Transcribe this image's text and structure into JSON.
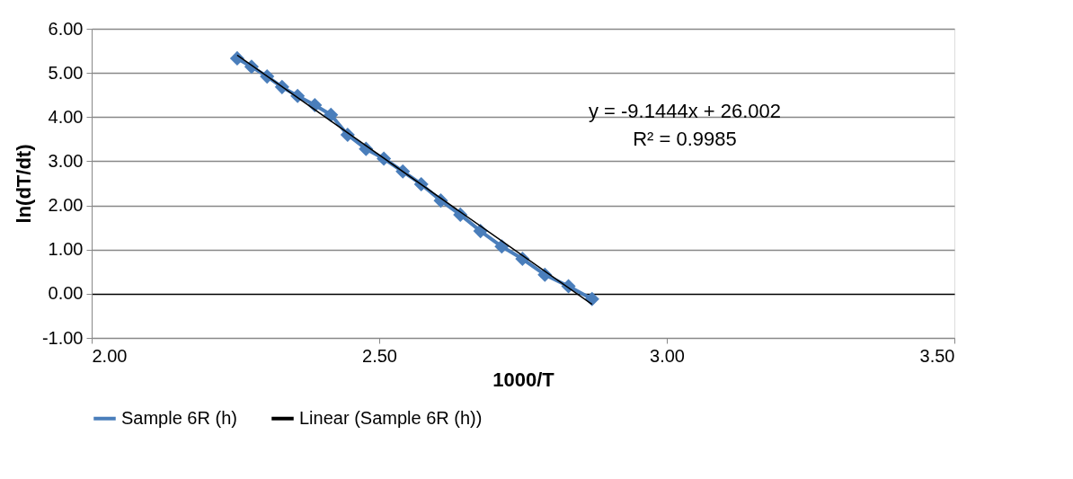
{
  "chart_data": {
    "type": "line",
    "xlabel": "1000/T",
    "ylabel": "ln(dT/dt)",
    "series": [
      {
        "name": "Sample 6R (h)",
        "marker": "diamond",
        "color": "#4a7ebb",
        "x": [
          2.253,
          2.278,
          2.305,
          2.331,
          2.358,
          2.388,
          2.416,
          2.445,
          2.477,
          2.508,
          2.541,
          2.573,
          2.607,
          2.641,
          2.676,
          2.713,
          2.749,
          2.788,
          2.829,
          2.87
        ],
        "values": [
          5.33,
          5.14,
          4.92,
          4.68,
          4.48,
          4.27,
          4.05,
          3.6,
          3.28,
          3.06,
          2.77,
          2.48,
          2.11,
          1.79,
          1.42,
          1.07,
          0.79,
          0.43,
          0.17,
          -0.12
        ]
      },
      {
        "name": "Linear (Sample 6R (h))",
        "marker": "none",
        "color": "#000000",
        "x": [
          2.253,
          2.87
        ],
        "values": [
          5.4,
          -0.24
        ]
      }
    ],
    "xlim": [
      2.0,
      3.5
    ],
    "xticks": [
      {
        "value": 2.0,
        "label": "2.00"
      },
      {
        "value": 2.5,
        "label": "2.50"
      },
      {
        "value": 3.0,
        "label": "3.00"
      },
      {
        "value": 3.5,
        "label": "3.50"
      }
    ],
    "ylim": [
      -1.0,
      6.0
    ],
    "yticks": [
      {
        "value": -1,
        "label": "-1.00"
      },
      {
        "value": 0,
        "label": "0.00"
      },
      {
        "value": 1,
        "label": "1.00"
      },
      {
        "value": 2,
        "label": "2.00"
      },
      {
        "value": 3,
        "label": "3.00"
      },
      {
        "value": 4,
        "label": "4.00"
      },
      {
        "value": 5,
        "label": "5.00"
      },
      {
        "value": 6,
        "label": "6.00"
      }
    ],
    "grid": "y",
    "legend": "bottom",
    "annotations": [
      "y = -9.1444x + 26.002",
      "R² = 0.9985"
    ]
  }
}
